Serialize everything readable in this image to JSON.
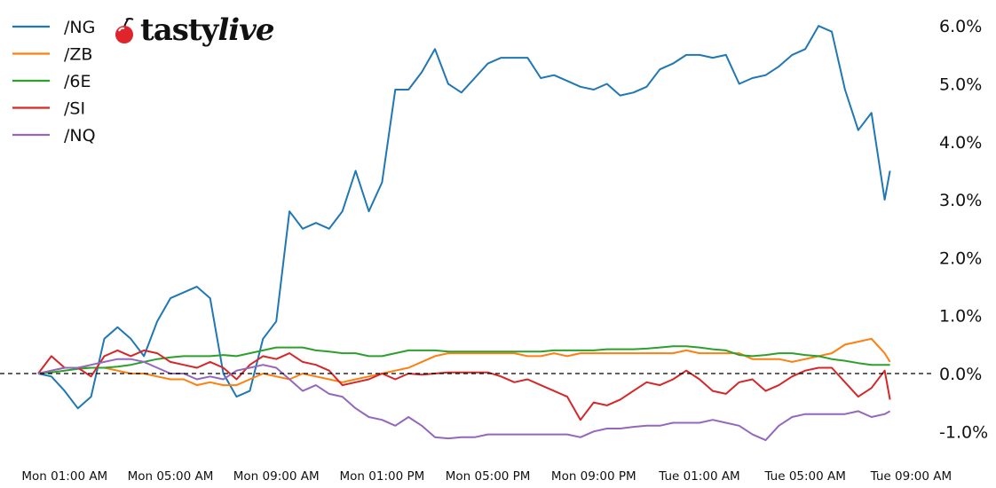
{
  "brand": {
    "logo_text_a": "tasty",
    "logo_text_b": "live",
    "logo_color": "#e0242b"
  },
  "chart_data": {
    "type": "line",
    "title": "",
    "xlabel": "",
    "ylabel": "",
    "ylim": [
      -1.1,
      6.2
    ],
    "y_ticks": [
      "-1.0%",
      "0.0%",
      "1.0%",
      "2.0%",
      "3.0%",
      "4.0%",
      "5.0%",
      "6.0%"
    ],
    "y_tick_values": [
      -1,
      0,
      1,
      2,
      3,
      4,
      5,
      6
    ],
    "y_axis_side": "right",
    "x_ticks": [
      "Mon 01:00 AM",
      "Mon 05:00 AM",
      "Mon 09:00 AM",
      "Mon 01:00 PM",
      "Mon 05:00 PM",
      "Mon 09:00 PM",
      "Tue 01:00 AM",
      "Tue 05:00 AM",
      "Tue 09:00 AM"
    ],
    "x_tick_values": [
      "Mon 01:00",
      "Mon 05:00",
      "Mon 09:00",
      "Mon 13:00",
      "Mon 17:00",
      "Mon 21:00",
      "Tue 01:00",
      "Tue 05:00",
      "Tue 09:00"
    ],
    "grid": false,
    "reference_line": {
      "value": 0,
      "style": "dashed",
      "color": "#000000"
    },
    "legend_placement": "top-left",
    "x": [
      "Mon 00:00",
      "Mon 00:30",
      "Mon 01:00",
      "Mon 01:30",
      "Mon 02:00",
      "Mon 02:30",
      "Mon 03:00",
      "Mon 03:30",
      "Mon 04:00",
      "Mon 04:30",
      "Mon 05:00",
      "Mon 05:30",
      "Mon 06:00",
      "Mon 06:30",
      "Mon 07:00",
      "Mon 07:30",
      "Mon 08:00",
      "Mon 08:30",
      "Mon 09:00",
      "Mon 09:30",
      "Mon 10:00",
      "Mon 10:30",
      "Mon 11:00",
      "Mon 11:30",
      "Mon 12:00",
      "Mon 12:30",
      "Mon 13:00",
      "Mon 13:30",
      "Mon 14:00",
      "Mon 14:30",
      "Mon 15:00",
      "Mon 15:30",
      "Mon 16:00",
      "Mon 16:30",
      "Mon 17:00",
      "Mon 17:30",
      "Mon 18:00",
      "Mon 18:30",
      "Mon 19:00",
      "Mon 19:30",
      "Mon 20:00",
      "Mon 20:30",
      "Mon 21:00",
      "Mon 21:30",
      "Mon 22:00",
      "Mon 22:30",
      "Mon 23:00",
      "Mon 23:30",
      "Tue 00:00",
      "Tue 00:30",
      "Tue 01:00",
      "Tue 01:30",
      "Tue 02:00",
      "Tue 02:30",
      "Tue 03:00",
      "Tue 03:30",
      "Tue 04:00",
      "Tue 04:30",
      "Tue 05:00",
      "Tue 05:30",
      "Tue 06:00",
      "Tue 06:30",
      "Tue 07:00",
      "Tue 07:30",
      "Tue 08:00",
      "Tue 08:12"
    ],
    "series": [
      {
        "name": "/NG",
        "color": "#1f77b4",
        "values": [
          0,
          -0.05,
          -0.3,
          -0.6,
          -0.4,
          0.6,
          0.8,
          0.6,
          0.3,
          0.9,
          1.3,
          1.4,
          1.5,
          1.3,
          0.0,
          -0.4,
          -0.3,
          0.6,
          0.9,
          2.8,
          2.5,
          2.6,
          2.5,
          2.8,
          3.5,
          2.8,
          3.3,
          4.9,
          4.9,
          5.2,
          5.6,
          5.0,
          4.85,
          5.1,
          5.35,
          5.45,
          5.45,
          5.45,
          5.1,
          5.15,
          5.05,
          4.95,
          4.9,
          5.0,
          4.8,
          4.85,
          4.95,
          5.25,
          5.35,
          5.5,
          5.5,
          5.45,
          5.5,
          5.0,
          5.1,
          5.15,
          5.3,
          5.5,
          5.6,
          6.0,
          5.9,
          4.9,
          4.2,
          4.5,
          3.0,
          3.5
        ]
      },
      {
        "name": "/ZB",
        "color": "#ff7f0e",
        "values": [
          0,
          0.05,
          0.1,
          0.1,
          0.1,
          0.1,
          0.05,
          0,
          0,
          -0.05,
          -0.1,
          -0.1,
          -0.2,
          -0.15,
          -0.2,
          -0.2,
          -0.1,
          0,
          -0.05,
          -0.1,
          0,
          -0.05,
          -0.1,
          -0.15,
          -0.1,
          -0.05,
          0,
          0.05,
          0.1,
          0.2,
          0.3,
          0.35,
          0.35,
          0.35,
          0.35,
          0.35,
          0.35,
          0.3,
          0.3,
          0.35,
          0.3,
          0.35,
          0.35,
          0.35,
          0.35,
          0.35,
          0.35,
          0.35,
          0.35,
          0.4,
          0.35,
          0.35,
          0.35,
          0.35,
          0.25,
          0.25,
          0.25,
          0.2,
          0.25,
          0.3,
          0.35,
          0.5,
          0.55,
          0.6,
          0.35,
          0.2
        ]
      },
      {
        "name": "/6E",
        "color": "#2ca02c",
        "values": [
          0,
          0.02,
          0.05,
          0.08,
          0.1,
          0.1,
          0.12,
          0.15,
          0.2,
          0.25,
          0.28,
          0.3,
          0.3,
          0.3,
          0.32,
          0.3,
          0.35,
          0.4,
          0.45,
          0.45,
          0.45,
          0.4,
          0.38,
          0.35,
          0.35,
          0.3,
          0.3,
          0.35,
          0.4,
          0.4,
          0.4,
          0.38,
          0.38,
          0.38,
          0.38,
          0.38,
          0.38,
          0.38,
          0.38,
          0.4,
          0.4,
          0.4,
          0.4,
          0.42,
          0.42,
          0.42,
          0.43,
          0.45,
          0.47,
          0.47,
          0.45,
          0.42,
          0.4,
          0.32,
          0.3,
          0.32,
          0.35,
          0.35,
          0.32,
          0.3,
          0.25,
          0.22,
          0.18,
          0.15,
          0.15,
          0.15
        ]
      },
      {
        "name": "/SI",
        "color": "#d62728",
        "values": [
          0,
          0.3,
          0.1,
          0.1,
          -0.05,
          0.3,
          0.4,
          0.3,
          0.4,
          0.35,
          0.2,
          0.15,
          0.1,
          0.2,
          0.1,
          -0.1,
          0.15,
          0.3,
          0.25,
          0.35,
          0.2,
          0.15,
          0.05,
          -0.2,
          -0.15,
          -0.1,
          0,
          -0.1,
          0,
          -0.02,
          0,
          0.02,
          0.02,
          0.02,
          0.02,
          -0.05,
          -0.15,
          -0.1,
          -0.2,
          -0.3,
          -0.4,
          -0.8,
          -0.5,
          -0.55,
          -0.45,
          -0.3,
          -0.15,
          -0.2,
          -0.1,
          0.05,
          -0.1,
          -0.3,
          -0.35,
          -0.15,
          -0.1,
          -0.3,
          -0.2,
          -0.05,
          0.05,
          0.1,
          0.1,
          -0.15,
          -0.4,
          -0.25,
          0.05,
          -0.45
        ]
      },
      {
        "name": "/NQ",
        "color": "#9467bd",
        "values": [
          0,
          0.05,
          0.1,
          0.1,
          0.15,
          0.2,
          0.25,
          0.25,
          0.2,
          0.1,
          0,
          0,
          -0.1,
          -0.05,
          -0.1,
          0.05,
          0.1,
          0.15,
          0.1,
          -0.1,
          -0.3,
          -0.2,
          -0.35,
          -0.4,
          -0.6,
          -0.75,
          -0.8,
          -0.9,
          -0.75,
          -0.9,
          -1.1,
          -1.12,
          -1.1,
          -1.1,
          -1.05,
          -1.05,
          -1.05,
          -1.05,
          -1.05,
          -1.05,
          -1.05,
          -1.1,
          -1.0,
          -0.95,
          -0.95,
          -0.92,
          -0.9,
          -0.9,
          -0.85,
          -0.85,
          -0.85,
          -0.8,
          -0.85,
          -0.9,
          -1.05,
          -1.15,
          -0.9,
          -0.75,
          -0.7,
          -0.7,
          -0.7,
          -0.7,
          -0.65,
          -0.75,
          -0.7,
          -0.65
        ]
      }
    ]
  }
}
